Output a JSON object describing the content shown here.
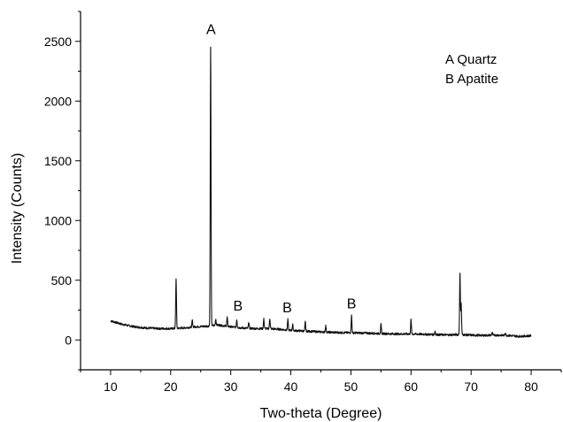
{
  "chart_data": {
    "type": "line",
    "title": "",
    "xlabel": "Two-theta (Degree)",
    "ylabel": "Intensity (Counts)",
    "xlim": [
      5,
      85
    ],
    "ylim": [
      -250,
      2750
    ],
    "x_ticks": [
      10,
      20,
      30,
      40,
      50,
      60,
      70,
      80
    ],
    "y_ticks": [
      0,
      500,
      1000,
      1500,
      2000,
      2500
    ],
    "series": [
      {
        "baseline": [
          [
            10,
            160
          ],
          [
            12,
            130
          ],
          [
            14,
            110
          ],
          [
            16,
            100
          ],
          [
            18,
            95
          ],
          [
            20,
            95
          ],
          [
            22,
            100
          ],
          [
            24,
            110
          ],
          [
            26,
            115
          ],
          [
            28,
            125
          ],
          [
            30,
            110
          ],
          [
            32,
            100
          ],
          [
            34,
            95
          ],
          [
            36,
            95
          ],
          [
            38,
            90
          ],
          [
            40,
            80
          ],
          [
            42,
            75
          ],
          [
            44,
            70
          ],
          [
            46,
            65
          ],
          [
            48,
            62
          ],
          [
            50,
            60
          ],
          [
            52,
            58
          ],
          [
            54,
            55
          ],
          [
            56,
            52
          ],
          [
            58,
            50
          ],
          [
            60,
            50
          ],
          [
            62,
            48
          ],
          [
            64,
            45
          ],
          [
            66,
            42
          ],
          [
            68,
            45
          ],
          [
            70,
            40
          ],
          [
            72,
            38
          ],
          [
            74,
            40
          ],
          [
            76,
            38
          ],
          [
            78,
            30
          ],
          [
            80,
            35
          ]
        ],
        "peaks": [
          [
            20.9,
            510
          ],
          [
            23.6,
            165
          ],
          [
            26.65,
            2460
          ],
          [
            27.5,
            175
          ],
          [
            29.4,
            190
          ],
          [
            31.0,
            170
          ],
          [
            33.0,
            145
          ],
          [
            35.5,
            175
          ],
          [
            36.5,
            180
          ],
          [
            39.5,
            170
          ],
          [
            40.3,
            130
          ],
          [
            42.4,
            150
          ],
          [
            45.8,
            120
          ],
          [
            50.1,
            205
          ],
          [
            55.0,
            130
          ],
          [
            60.0,
            170
          ],
          [
            64.0,
            75
          ],
          [
            68.15,
            555
          ],
          [
            68.35,
            300
          ],
          [
            73.5,
            65
          ],
          [
            75.7,
            60
          ]
        ]
      }
    ],
    "annotations": [
      {
        "text": "A",
        "x": 26.7,
        "y": 2560
      },
      {
        "text": "B",
        "x": 31.2,
        "y": 245
      },
      {
        "text": "B",
        "x": 39.4,
        "y": 230
      },
      {
        "text": "B",
        "x": 50.1,
        "y": 265
      }
    ],
    "legend": {
      "placement": "top-right",
      "entries": [
        "A Quartz",
        "B Apatite"
      ]
    }
  }
}
